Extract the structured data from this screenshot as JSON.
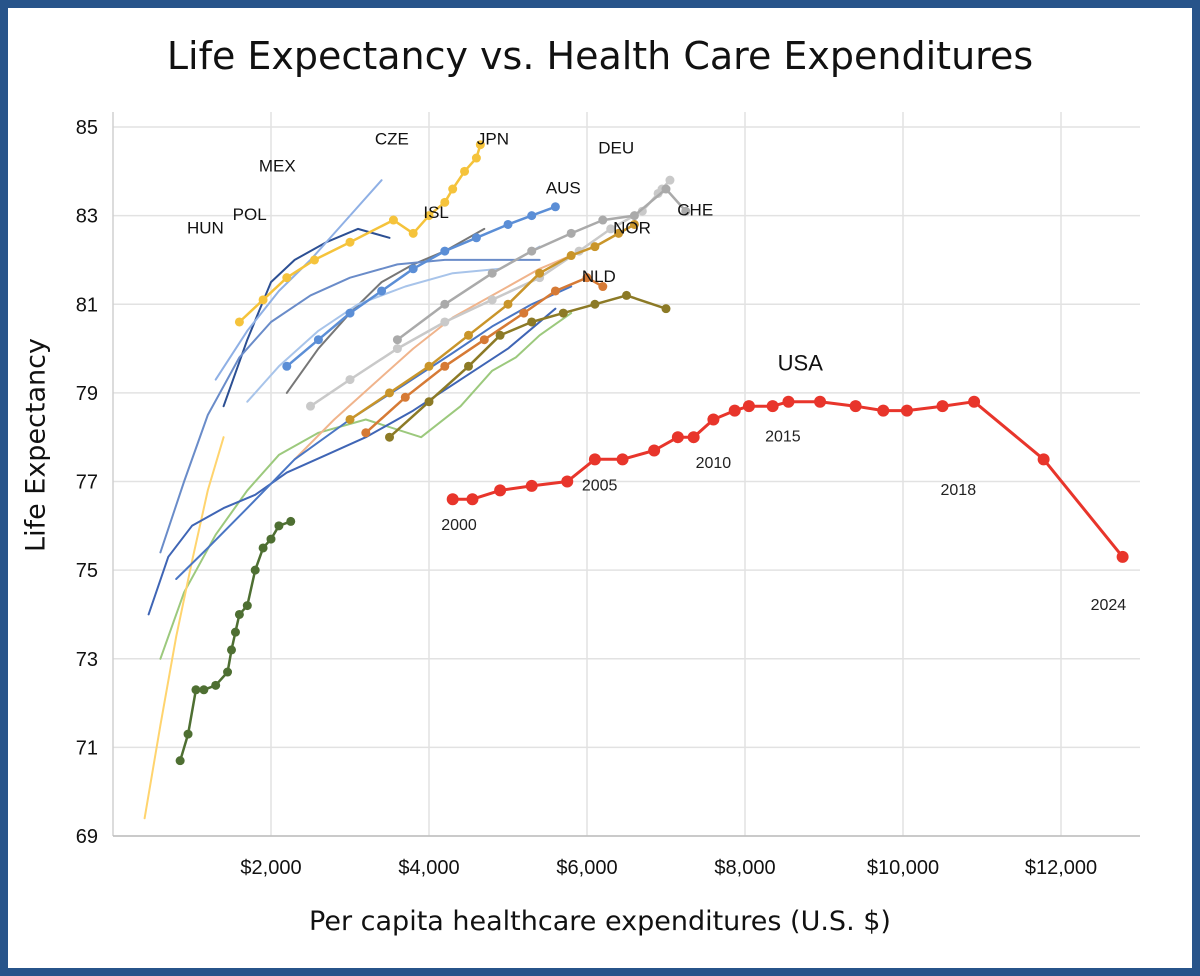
{
  "chart_data": {
    "type": "line",
    "title": "Life Expectancy vs. Health Care Expenditures",
    "xlabel": "Per capita healthcare expenditures (U.S. $)",
    "ylabel": "Life Expectancy",
    "xlim": [
      0,
      13000
    ],
    "ylim": [
      69,
      85
    ],
    "x_ticks": [
      {
        "value": 2000,
        "label": "$2,000"
      },
      {
        "value": 4000,
        "label": "$4,000"
      },
      {
        "value": 6000,
        "label": "$6,000"
      },
      {
        "value": 8000,
        "label": "$8,000"
      },
      {
        "value": 10000,
        "label": "$10,000"
      },
      {
        "value": 12000,
        "label": "$12,000"
      }
    ],
    "y_ticks": [
      {
        "value": 69,
        "label": "69"
      },
      {
        "value": 71,
        "label": "71"
      },
      {
        "value": 73,
        "label": "73"
      },
      {
        "value": 75,
        "label": "75"
      },
      {
        "value": 77,
        "label": "77"
      },
      {
        "value": 79,
        "label": "79"
      },
      {
        "value": 81,
        "label": "81"
      },
      {
        "value": 83,
        "label": "83"
      },
      {
        "value": 85,
        "label": "85"
      }
    ],
    "grid": true,
    "country_labels": [
      {
        "text": "HUN",
        "x": 1170,
        "y": 82.6
      },
      {
        "text": "POL",
        "x": 1730,
        "y": 82.9
      },
      {
        "text": "MEX",
        "x": 2080,
        "y": 84.0
      },
      {
        "text": "CZE",
        "x": 3530,
        "y": 84.6
      },
      {
        "text": "JPN",
        "x": 4810,
        "y": 84.6
      },
      {
        "text": "ISL",
        "x": 4090,
        "y": 82.95
      },
      {
        "text": "AUS",
        "x": 5700,
        "y": 83.5
      },
      {
        "text": "DEU",
        "x": 6370,
        "y": 84.4
      },
      {
        "text": "CHE",
        "x": 7370,
        "y": 83.0
      },
      {
        "text": "NOR",
        "x": 6570,
        "y": 82.6
      },
      {
        "text": "NLD",
        "x": 6150,
        "y": 81.5
      }
    ],
    "series": [
      {
        "name": "USA",
        "color": "#e8352b",
        "markers": true,
        "x": [
          4300,
          4550,
          4900,
          5300,
          5750,
          6100,
          6450,
          6850,
          7150,
          7350,
          7600,
          7870,
          8050,
          8350,
          8550,
          8950,
          9400,
          9750,
          10050,
          10500,
          10900,
          11780,
          12780
        ],
        "y": [
          76.6,
          76.6,
          76.8,
          76.9,
          77.0,
          77.5,
          77.5,
          77.7,
          78.0,
          78.0,
          78.4,
          78.6,
          78.7,
          78.7,
          78.8,
          78.8,
          78.7,
          78.6,
          78.6,
          78.7,
          78.8,
          77.5,
          75.3
        ]
      },
      {
        "name": "JPN",
        "color": "#f5c33b",
        "markers": true,
        "x": [
          1600,
          1900,
          2200,
          2550,
          3000,
          3550,
          3800,
          4000,
          4200,
          4300,
          4450,
          4600,
          4650
        ],
        "y": [
          80.6,
          81.1,
          81.6,
          82.0,
          82.4,
          82.9,
          82.6,
          83.0,
          83.3,
          83.6,
          84.0,
          84.3,
          84.6
        ]
      },
      {
        "name": "AUS",
        "color": "#5b8ed6",
        "markers": true,
        "x": [
          2200,
          2600,
          3000,
          3400,
          3800,
          4200,
          4600,
          5000,
          5300,
          5600
        ],
        "y": [
          79.6,
          80.2,
          80.8,
          81.3,
          81.8,
          82.2,
          82.5,
          82.8,
          83.0,
          83.2
        ]
      },
      {
        "name": "DEU",
        "color": "#c9c9c9",
        "markers": true,
        "x": [
          2500,
          3000,
          3600,
          4200,
          4800,
          5400,
          5900,
          6300,
          6700,
          6950,
          7050,
          6900
        ],
        "y": [
          78.7,
          79.3,
          80.0,
          80.6,
          81.1,
          81.6,
          82.2,
          82.7,
          83.1,
          83.6,
          83.8,
          83.5
        ]
      },
      {
        "name": "CHE",
        "color": "#aaaaaa",
        "markers": true,
        "x": [
          3600,
          4200,
          4800,
          5300,
          5800,
          6200,
          6600,
          7000,
          7250
        ],
        "y": [
          80.2,
          81.0,
          81.7,
          82.2,
          82.6,
          82.9,
          83.0,
          83.6,
          83.1
        ]
      },
      {
        "name": "NOR",
        "color": "#c9952a",
        "markers": true,
        "x": [
          3000,
          3500,
          4000,
          4500,
          5000,
          5400,
          5800,
          6100,
          6400,
          6600
        ],
        "y": [
          78.4,
          79.0,
          79.6,
          80.3,
          81.0,
          81.7,
          82.1,
          82.3,
          82.6,
          82.8
        ]
      },
      {
        "name": "NLD",
        "color": "#d67a35",
        "markers": true,
        "x": [
          3200,
          3700,
          4200,
          4700,
          5200,
          5600,
          6000,
          6200
        ],
        "y": [
          78.1,
          78.9,
          79.6,
          80.2,
          80.8,
          81.3,
          81.6,
          81.4
        ]
      },
      {
        "name": "Olive",
        "color": "#8c7a26",
        "markers": true,
        "x": [
          3500,
          4000,
          4500,
          4900,
          5300,
          5700,
          6100,
          6500,
          7000
        ],
        "y": [
          78.0,
          78.8,
          79.6,
          80.3,
          80.6,
          80.8,
          81.0,
          81.2,
          80.9
        ]
      },
      {
        "name": "Dark green",
        "color": "#4e6f32",
        "markers": true,
        "x": [
          850,
          950,
          1050,
          1150,
          1300,
          1450,
          1500,
          1550,
          1600,
          1700,
          1800,
          1900,
          2000,
          2100,
          2250
        ],
        "y": [
          70.7,
          71.3,
          72.3,
          72.3,
          72.4,
          72.7,
          73.2,
          73.6,
          74.0,
          74.2,
          75.0,
          75.5,
          75.7,
          76.0,
          76.1
        ]
      },
      {
        "name": "Light green",
        "color": "#9cc97d",
        "markers": false,
        "x": [
          600,
          900,
          1300,
          1700,
          2100,
          2600,
          3200,
          3900,
          4400,
          4800,
          5100,
          5400,
          5800
        ],
        "y": [
          73.0,
          74.5,
          75.8,
          76.8,
          77.6,
          78.1,
          78.4,
          78.0,
          78.7,
          79.5,
          79.8,
          80.3,
          80.8
        ]
      },
      {
        "name": "Light yellow",
        "color": "#ffd46e",
        "markers": false,
        "x": [
          400,
          600,
          800,
          1000,
          1200,
          1400
        ],
        "y": [
          69.4,
          71.5,
          73.5,
          75.2,
          76.8,
          78.0
        ]
      },
      {
        "name": "HUN",
        "color": "#3f65b5",
        "markers": false,
        "x": [
          450,
          700,
          1000,
          1400,
          1800,
          2200,
          2700,
          3200,
          3800,
          4400,
          5000,
          5600
        ],
        "y": [
          74.0,
          75.3,
          76.0,
          76.4,
          76.7,
          77.2,
          77.6,
          78.0,
          78.6,
          79.3,
          80.0,
          80.9
        ]
      },
      {
        "name": "POL",
        "color": "#2c4f93",
        "markers": false,
        "x": [
          1400,
          1700,
          2000,
          2300,
          2700,
          3100,
          3500
        ],
        "y": [
          78.7,
          80.2,
          81.5,
          82.0,
          82.4,
          82.7,
          82.5
        ]
      },
      {
        "name": "MEX",
        "color": "#8fb0e5",
        "markers": false,
        "x": [
          1300,
          1700,
          2100,
          2500,
          2900,
          3400
        ],
        "y": [
          79.3,
          80.4,
          81.3,
          82.0,
          82.8,
          83.8
        ]
      },
      {
        "name": "CZE",
        "color": "#777777",
        "markers": false,
        "x": [
          2200,
          2600,
          3000,
          3400,
          3800,
          4200,
          4700
        ],
        "y": [
          79.0,
          80.0,
          80.8,
          81.5,
          81.9,
          82.2,
          82.7
        ]
      },
      {
        "name": "Light blue",
        "color": "#a8c4ea",
        "markers": false,
        "x": [
          1700,
          2100,
          2600,
          3100,
          3700,
          4300,
          4900,
          5400
        ],
        "y": [
          78.8,
          79.6,
          80.4,
          81.0,
          81.4,
          81.7,
          81.8,
          82.3
        ]
      },
      {
        "name": "Peach",
        "color": "#f0b48c",
        "markers": false,
        "x": [
          2300,
          2800,
          3300,
          3800,
          4300,
          4900,
          5400,
          5800
        ],
        "y": [
          77.5,
          78.4,
          79.2,
          80.0,
          80.7,
          81.3,
          81.8,
          82.1
        ]
      },
      {
        "name": "Mid blue",
        "color": "#4a76c4",
        "markers": false,
        "x": [
          800,
          1200,
          1700,
          2300,
          3000,
          3700,
          4300,
          4800,
          5300,
          5800
        ],
        "y": [
          74.8,
          75.5,
          76.4,
          77.5,
          78.4,
          79.2,
          79.9,
          80.5,
          81.0,
          81.4
        ]
      },
      {
        "name": "Steel blue",
        "color": "#6a8cc9",
        "markers": false,
        "x": [
          600,
          900,
          1200,
          1600,
          2000,
          2500,
          3000,
          3600,
          4200,
          4800,
          5400
        ],
        "y": [
          75.4,
          77.0,
          78.5,
          79.8,
          80.6,
          81.2,
          81.6,
          81.9,
          82.0,
          82.0,
          82.0
        ]
      }
    ],
    "annotations": [
      {
        "text": "USA",
        "x": 8700,
        "y": 79.5,
        "style": "usa-label"
      },
      {
        "text": "2000",
        "x": 4380,
        "y": 75.9,
        "style": "year-label"
      },
      {
        "text": "2005",
        "x": 6160,
        "y": 76.8,
        "style": "year-label"
      },
      {
        "text": "2010",
        "x": 7600,
        "y": 77.3,
        "style": "year-label"
      },
      {
        "text": "2015",
        "x": 8480,
        "y": 77.9,
        "style": "year-label"
      },
      {
        "text": "2018",
        "x": 10700,
        "y": 76.7,
        "style": "year-label"
      },
      {
        "text": "2024",
        "x": 12600,
        "y": 74.1,
        "style": "year-label"
      }
    ]
  }
}
